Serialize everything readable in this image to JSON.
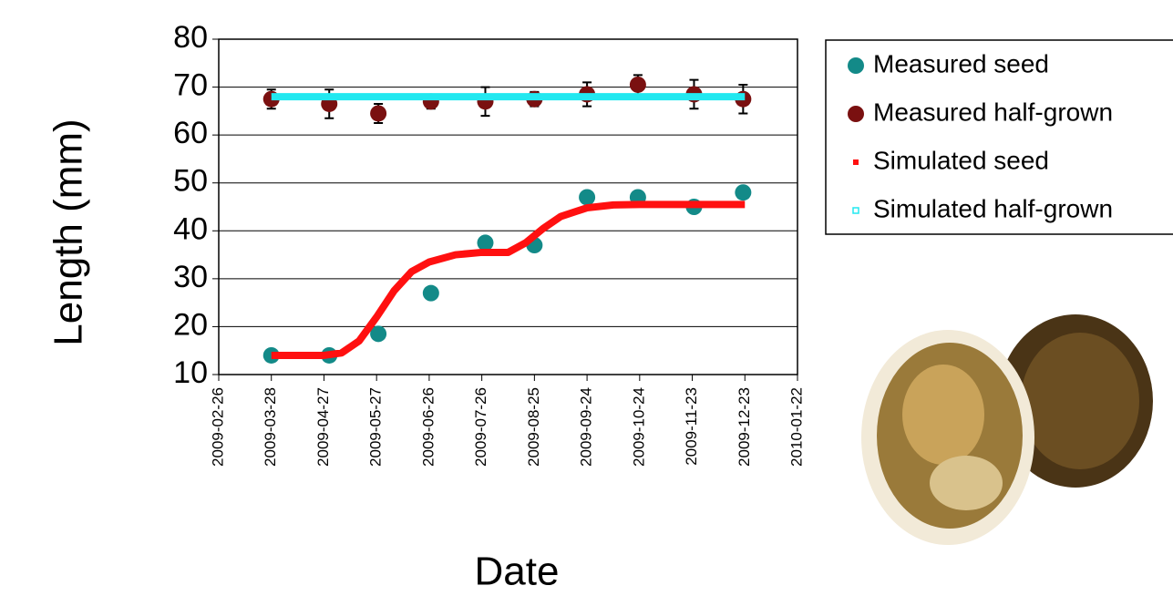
{
  "chart_data": {
    "type": "line",
    "xlabel": "Date",
    "ylabel": "Length (mm)",
    "xlim": [
      "2009-02-26",
      "2010-01-22"
    ],
    "xticks": [
      "2009-02-26",
      "2009-03-28",
      "2009-04-27",
      "2009-05-27",
      "2009-06-26",
      "2009-07-26",
      "2009-08-25",
      "2009-09-24",
      "2009-10-24",
      "2009-11-23",
      "2009-12-23",
      "2010-01-22"
    ],
    "ylim": [
      10,
      80
    ],
    "yticks": [
      10,
      20,
      30,
      40,
      50,
      60,
      70,
      80
    ],
    "grid": true,
    "legend": "right",
    "series": [
      {
        "name": "Measured seed",
        "mode": "markers",
        "color": "#138a88",
        "x": [
          "2009-03-28",
          "2009-04-30",
          "2009-05-28",
          "2009-06-27",
          "2009-07-28",
          "2009-08-25",
          "2009-09-24",
          "2009-10-23",
          "2009-11-24",
          "2009-12-22"
        ],
        "values": [
          14,
          14,
          18.5,
          27,
          37.5,
          37,
          47,
          47,
          45,
          48
        ]
      },
      {
        "name": "Measured half-grown",
        "mode": "markers",
        "color": "#7a1010",
        "x": [
          "2009-03-28",
          "2009-04-30",
          "2009-05-28",
          "2009-06-27",
          "2009-07-28",
          "2009-08-25",
          "2009-09-24",
          "2009-10-23",
          "2009-11-24",
          "2009-12-22"
        ],
        "values": [
          67.5,
          66.5,
          64.5,
          67,
          67,
          67.5,
          68.5,
          70.5,
          68.5,
          67.5
        ],
        "errors": [
          2,
          3,
          2,
          1.5,
          3,
          1.5,
          2.5,
          2,
          3,
          3
        ]
      },
      {
        "name": "Simulated seed",
        "mode": "line",
        "color": "#ff1010",
        "x": [
          "2009-03-28",
          "2009-04-12",
          "2009-04-27",
          "2009-05-07",
          "2009-05-17",
          "2009-05-27",
          "2009-06-06",
          "2009-06-16",
          "2009-06-26",
          "2009-07-11",
          "2009-07-26",
          "2009-08-10",
          "2009-08-20",
          "2009-08-30",
          "2009-09-09",
          "2009-09-24",
          "2009-10-09",
          "2009-10-24",
          "2009-11-23",
          "2009-12-23"
        ],
        "values": [
          14,
          14,
          14,
          14.5,
          17,
          22,
          27.5,
          31.5,
          33.5,
          35,
          35.5,
          35.5,
          37.5,
          40.5,
          43,
          44.8,
          45.4,
          45.5,
          45.5,
          45.5
        ]
      },
      {
        "name": "Simulated half-grown",
        "mode": "line",
        "color": "#22e8f0",
        "x": [
          "2009-03-28",
          "2009-12-23"
        ],
        "values": [
          68,
          68
        ]
      }
    ]
  }
}
